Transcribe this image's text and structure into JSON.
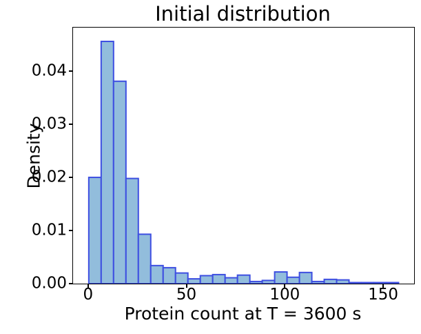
{
  "chart_data": {
    "type": "bar",
    "subtype": "histogram",
    "title": "Initial distribution",
    "xlabel": "Protein count at T = 3600 s",
    "ylabel": "Density",
    "bin_start": 0,
    "bin_width": 6.3,
    "densities": [
      0.02,
      0.0456,
      0.0381,
      0.0198,
      0.0093,
      0.0034,
      0.003,
      0.002,
      0.0009,
      0.0015,
      0.0017,
      0.0011,
      0.0016,
      0.0004,
      0.0006,
      0.0022,
      0.0012,
      0.0021,
      0.0004,
      0.0008,
      0.0007,
      0.0002,
      0.0002,
      0.0002,
      0.0002
    ],
    "xticks": {
      "values": [
        0,
        50,
        100,
        150
      ],
      "labels": [
        "0",
        "50",
        "100",
        "150"
      ]
    },
    "yticks": {
      "values": [
        0,
        0.01,
        0.02,
        0.03,
        0.04
      ],
      "labels": [
        "0.00",
        "0.01",
        "0.02",
        "0.03",
        "0.04"
      ]
    },
    "xlim": [
      -8,
      165.4
    ],
    "ylim": [
      0,
      0.0482
    ],
    "grid": false,
    "legend_visible": false,
    "colors": {
      "bar_fill": "#92bddc",
      "bar_edge": "#3d4ee1",
      "axis": "#000000",
      "text": "#000000",
      "background": "#ffffff"
    }
  }
}
